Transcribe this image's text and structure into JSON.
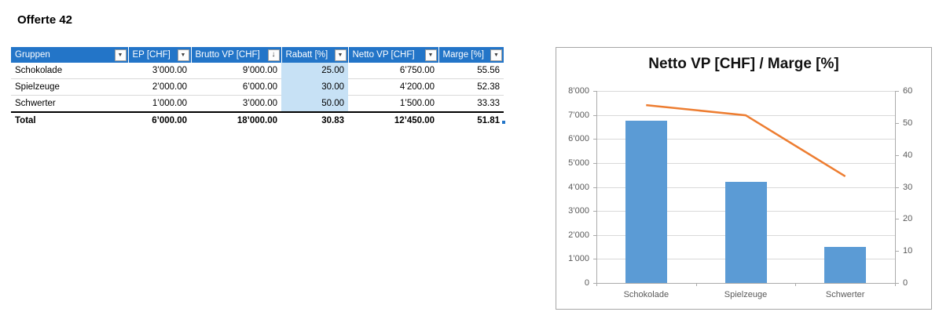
{
  "page": {
    "title": "Offerte 42"
  },
  "table": {
    "header_color": "#2375C8",
    "highlight_color": "#C7E1F5",
    "columns": [
      {
        "label": "Gruppen",
        "filter": "dropdown",
        "filter_glyph": "▼"
      },
      {
        "label": "EP [CHF]",
        "filter": "dropdown",
        "filter_glyph": "▼"
      },
      {
        "label": "Brutto VP [CHF]",
        "filter": "sorted-desc",
        "filter_glyph": "↓"
      },
      {
        "label": "Rabatt [%]",
        "filter": "dropdown",
        "filter_glyph": "▼"
      },
      {
        "label": "Netto VP [CHF]",
        "filter": "dropdown",
        "filter_glyph": "▼"
      },
      {
        "label": "Marge [%]",
        "filter": "dropdown",
        "filter_glyph": "▼"
      }
    ],
    "rows": [
      {
        "cells": [
          "Schokolade",
          "3’000.00",
          "9’000.00",
          "25.00",
          "6’750.00",
          "55.56"
        ]
      },
      {
        "cells": [
          "Spielzeuge",
          "2’000.00",
          "6’000.00",
          "30.00",
          "4’200.00",
          "52.38"
        ]
      },
      {
        "cells": [
          "Schwerter",
          "1’000.00",
          "3’000.00",
          "50.00",
          "1’500.00",
          "33.33"
        ]
      }
    ],
    "total": {
      "cells": [
        "Total",
        "6’000.00",
        "18’000.00",
        "30.83",
        "12’450.00",
        "51.81"
      ]
    }
  },
  "chart_data": {
    "type": "combo",
    "title": "Netto VP [CHF] / Marge [%]",
    "categories": [
      "Schokolade",
      "Spielzeuge",
      "Schwerter"
    ],
    "series": [
      {
        "name": "Netto VP [CHF]",
        "type": "bar",
        "axis": "left",
        "color": "#5B9BD5",
        "values": [
          6750,
          4200,
          1500
        ]
      },
      {
        "name": "Marge [%]",
        "type": "line",
        "axis": "right",
        "color": "#ED7D31",
        "values": [
          55.56,
          52.38,
          33.33
        ]
      }
    ],
    "left_axis": {
      "min": 0,
      "max": 8000,
      "step": 1000,
      "tick_labels": [
        "0",
        "1’000",
        "2’000",
        "3’000",
        "4’000",
        "5’000",
        "6’000",
        "7’000",
        "8’000"
      ]
    },
    "right_axis": {
      "min": 0,
      "max": 60,
      "step": 10,
      "tick_labels": [
        "0",
        "10",
        "20",
        "30",
        "40",
        "50",
        "60"
      ]
    },
    "grid": true,
    "legend": "none"
  }
}
